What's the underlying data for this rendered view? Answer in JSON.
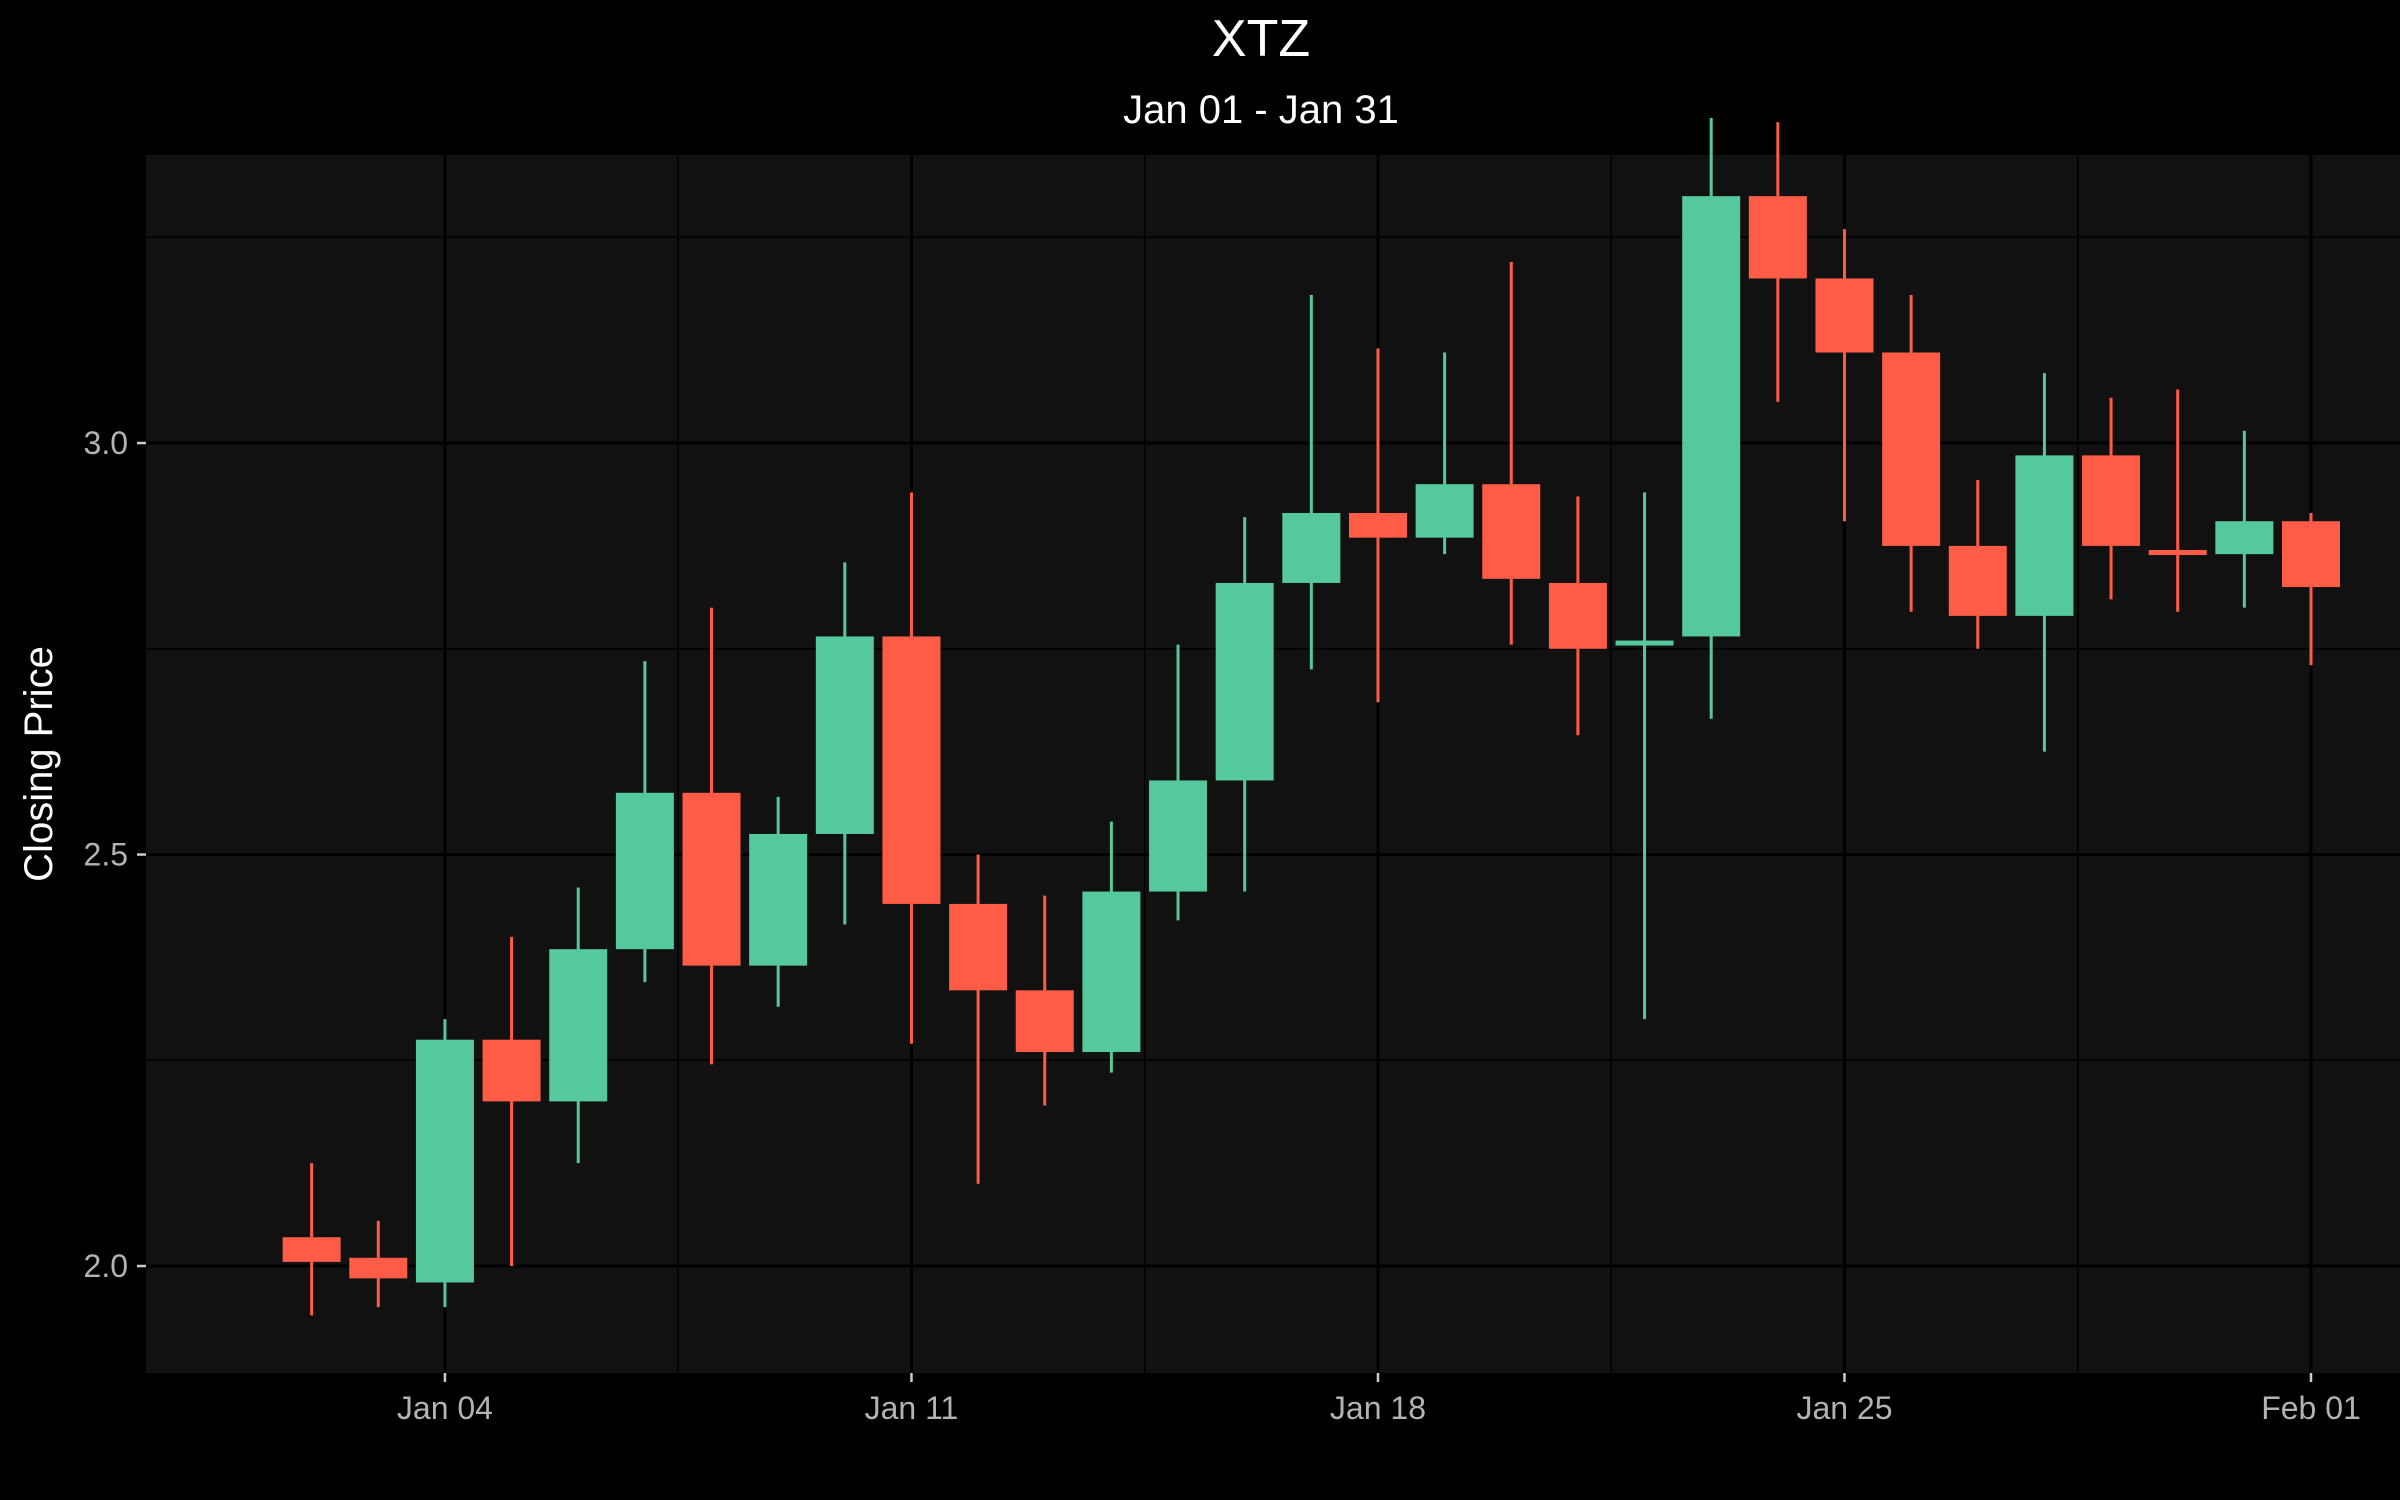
{
  "chart_data": {
    "type": "candlestick",
    "title": "XTZ",
    "subtitle": "Jan 01 - Jan 31",
    "xlabel": "",
    "ylabel": "Closing Price",
    "ylim": [
      1.87,
      3.35
    ],
    "xlim": [
      "2024-01-01",
      "2024-02-01"
    ],
    "y_ticks": [
      {
        "value": 2.0,
        "label": "2.0"
      },
      {
        "value": 2.5,
        "label": "2.5"
      },
      {
        "value": 3.0,
        "label": "3.0"
      }
    ],
    "x_ticks": [
      {
        "date": "2024-01-04",
        "label": "Jan 04"
      },
      {
        "date": "2024-01-11",
        "label": "Jan 11"
      },
      {
        "date": "2024-01-18",
        "label": "Jan 18"
      },
      {
        "date": "2024-01-25",
        "label": "Jan 25"
      },
      {
        "date": "2024-02-01",
        "label": "Feb 01"
      }
    ],
    "grid": true,
    "colors": {
      "increasing": "#55c99b",
      "decreasing": "#ff5c47",
      "background": "#000000",
      "panel": "#111111",
      "grid": "#000000"
    },
    "candles": [
      {
        "date": "2024-01-02",
        "open": 2.035,
        "high": 2.125,
        "low": 1.94,
        "close": 2.005
      },
      {
        "date": "2024-01-03",
        "open": 2.01,
        "high": 2.055,
        "low": 1.95,
        "close": 1.985
      },
      {
        "date": "2024-01-04",
        "open": 1.98,
        "high": 2.3,
        "low": 1.95,
        "close": 2.275
      },
      {
        "date": "2024-01-05",
        "open": 2.275,
        "high": 2.4,
        "low": 2.0,
        "close": 2.2
      },
      {
        "date": "2024-01-06",
        "open": 2.2,
        "high": 2.46,
        "low": 2.125,
        "close": 2.385
      },
      {
        "date": "2024-01-07",
        "open": 2.385,
        "high": 2.735,
        "low": 2.345,
        "close": 2.575
      },
      {
        "date": "2024-01-08",
        "open": 2.575,
        "high": 2.8,
        "low": 2.245,
        "close": 2.365
      },
      {
        "date": "2024-01-09",
        "open": 2.365,
        "high": 2.57,
        "low": 2.315,
        "close": 2.525
      },
      {
        "date": "2024-01-10",
        "open": 2.525,
        "high": 2.855,
        "low": 2.415,
        "close": 2.765
      },
      {
        "date": "2024-01-11",
        "open": 2.765,
        "high": 2.94,
        "low": 2.27,
        "close": 2.44
      },
      {
        "date": "2024-01-12",
        "open": 2.44,
        "high": 2.5,
        "low": 2.1,
        "close": 2.335
      },
      {
        "date": "2024-01-13",
        "open": 2.335,
        "high": 2.45,
        "low": 2.195,
        "close": 2.26
      },
      {
        "date": "2024-01-14",
        "open": 2.26,
        "high": 2.54,
        "low": 2.235,
        "close": 2.455
      },
      {
        "date": "2024-01-15",
        "open": 2.455,
        "high": 2.755,
        "low": 2.42,
        "close": 2.59
      },
      {
        "date": "2024-01-16",
        "open": 2.59,
        "high": 2.91,
        "low": 2.455,
        "close": 2.83
      },
      {
        "date": "2024-01-17",
        "open": 2.83,
        "high": 3.18,
        "low": 2.725,
        "close": 2.915
      },
      {
        "date": "2024-01-18",
        "open": 2.915,
        "high": 3.115,
        "low": 2.685,
        "close": 2.885
      },
      {
        "date": "2024-01-19",
        "open": 2.885,
        "high": 3.11,
        "low": 2.865,
        "close": 2.95
      },
      {
        "date": "2024-01-20",
        "open": 2.95,
        "high": 3.22,
        "low": 2.755,
        "close": 2.835
      },
      {
        "date": "2024-01-21",
        "open": 2.83,
        "high": 2.935,
        "low": 2.645,
        "close": 2.75
      },
      {
        "date": "2024-01-22",
        "open": 2.755,
        "high": 2.94,
        "low": 2.3,
        "close": 2.76
      },
      {
        "date": "2024-01-23",
        "open": 2.765,
        "high": 3.395,
        "low": 2.665,
        "close": 3.3
      },
      {
        "date": "2024-01-24",
        "open": 3.3,
        "high": 3.39,
        "low": 3.05,
        "close": 3.2
      },
      {
        "date": "2024-01-25",
        "open": 3.2,
        "high": 3.26,
        "low": 2.905,
        "close": 3.11
      },
      {
        "date": "2024-01-26",
        "open": 3.11,
        "high": 3.18,
        "low": 2.795,
        "close": 2.875
      },
      {
        "date": "2024-01-27",
        "open": 2.875,
        "high": 2.955,
        "low": 2.75,
        "close": 2.79
      },
      {
        "date": "2024-01-28",
        "open": 2.79,
        "high": 3.085,
        "low": 2.625,
        "close": 2.985
      },
      {
        "date": "2024-01-29",
        "open": 2.985,
        "high": 3.055,
        "low": 2.81,
        "close": 2.875
      },
      {
        "date": "2024-01-30",
        "open": 2.87,
        "high": 3.065,
        "low": 2.795,
        "close": 2.865
      },
      {
        "date": "2024-01-31",
        "open": 2.865,
        "high": 3.015,
        "low": 2.8,
        "close": 2.905
      },
      {
        "date": "2024-02-01",
        "open": 2.905,
        "high": 2.915,
        "low": 2.73,
        "close": 2.825
      }
    ]
  }
}
